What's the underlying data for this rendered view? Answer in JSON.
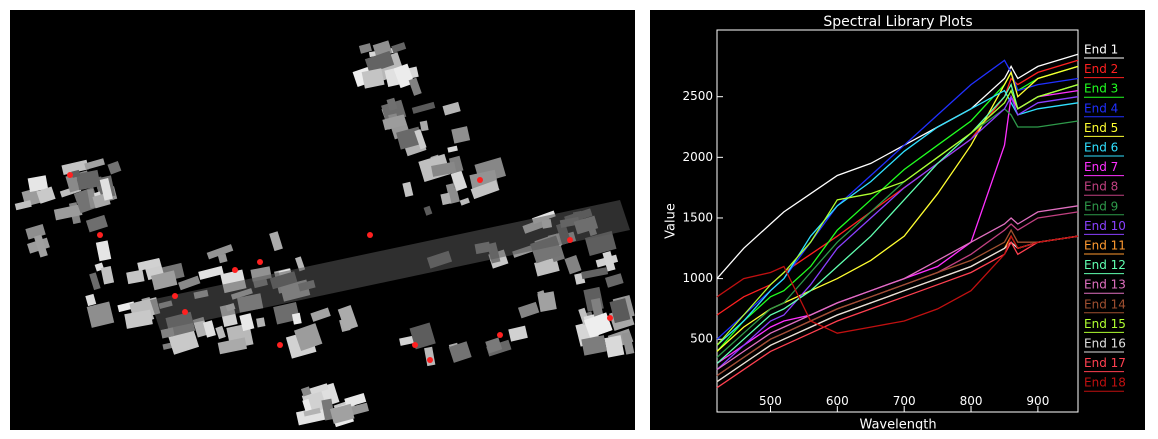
{
  "chart_data": {
    "type": "line",
    "title": "Spectral Library Plots",
    "x_label": "Wavelength",
    "y_label": "Value",
    "x": [
      420,
      460,
      500,
      520,
      560,
      600,
      650,
      700,
      750,
      800,
      850,
      860,
      870,
      900,
      960
    ],
    "xlim": [
      420,
      960
    ],
    "ylim": [
      -100,
      3050
    ],
    "xticks": [
      500,
      600,
      700,
      800,
      900
    ],
    "yticks": [
      500,
      1000,
      1500,
      2000,
      2500
    ],
    "series": [
      {
        "name": "End 1",
        "color": "#ffffff",
        "values": [
          1000,
          1250,
          1450,
          1550,
          1700,
          1850,
          1950,
          2100,
          2250,
          2400,
          2650,
          2750,
          2650,
          2750,
          2850
        ]
      },
      {
        "name": "End 2",
        "color": "#ff2020",
        "values": [
          700,
          850,
          950,
          1050,
          1200,
          1350,
          1550,
          1750,
          1950,
          2150,
          2500,
          2650,
          2600,
          2700,
          2800
        ]
      },
      {
        "name": "End 3",
        "color": "#20ff20",
        "values": [
          400,
          650,
          850,
          900,
          1100,
          1400,
          1650,
          1900,
          2100,
          2300,
          2600,
          2700,
          2550,
          2650,
          2750
        ]
      },
      {
        "name": "End 4",
        "color": "#2030ff",
        "values": [
          500,
          700,
          900,
          1000,
          1300,
          1600,
          1850,
          2100,
          2350,
          2600,
          2800,
          2700,
          2550,
          2600,
          2650
        ]
      },
      {
        "name": "End 5",
        "color": "#ffff30",
        "values": [
          400,
          600,
          750,
          800,
          900,
          1000,
          1150,
          1350,
          1700,
          2100,
          2600,
          2700,
          2500,
          2650,
          2750
        ]
      },
      {
        "name": "End 6",
        "color": "#30e0ff",
        "values": [
          450,
          650,
          900,
          1000,
          1350,
          1600,
          1800,
          2050,
          2250,
          2400,
          2550,
          2450,
          2350,
          2400,
          2450
        ]
      },
      {
        "name": "End 7",
        "color": "#ff30ff",
        "values": [
          300,
          450,
          600,
          650,
          700,
          800,
          900,
          1000,
          1100,
          1300,
          2100,
          2500,
          2400,
          2500,
          2550
        ]
      },
      {
        "name": "End 8",
        "color": "#c04080",
        "values": [
          200,
          350,
          500,
          550,
          650,
          750,
          850,
          950,
          1050,
          1200,
          1400,
          1450,
          1400,
          1500,
          1550
        ]
      },
      {
        "name": "End 9",
        "color": "#2e9a4a",
        "values": [
          350,
          550,
          750,
          800,
          1050,
          1300,
          1550,
          1800,
          2000,
          2200,
          2400,
          2350,
          2250,
          2250,
          2300
        ]
      },
      {
        "name": "End 10",
        "color": "#8a40ff",
        "values": [
          250,
          450,
          650,
          700,
          950,
          1250,
          1500,
          1750,
          1950,
          2150,
          2400,
          2500,
          2350,
          2450,
          2500
        ]
      },
      {
        "name": "End 11",
        "color": "#ff9a30",
        "values": [
          150,
          300,
          450,
          500,
          600,
          700,
          800,
          900,
          1000,
          1100,
          1250,
          1350,
          1250,
          1300,
          1350
        ]
      },
      {
        "name": "End 12",
        "color": "#60ffb0",
        "values": [
          300,
          500,
          700,
          750,
          900,
          1100,
          1350,
          1650,
          1950,
          2200,
          2500,
          2600,
          2400,
          2500,
          2600
        ]
      },
      {
        "name": "End 13",
        "color": "#e070c0",
        "values": [
          250,
          400,
          550,
          600,
          700,
          800,
          900,
          1000,
          1150,
          1300,
          1450,
          1500,
          1450,
          1550,
          1600
        ]
      },
      {
        "name": "End 14",
        "color": "#a05030",
        "values": [
          200,
          350,
          500,
          550,
          650,
          750,
          850,
          950,
          1050,
          1150,
          1300,
          1400,
          1300,
          1300,
          1350
        ]
      },
      {
        "name": "End 15",
        "color": "#b0ff30",
        "values": [
          450,
          700,
          950,
          1050,
          1300,
          1650,
          1700,
          1800,
          2000,
          2200,
          2450,
          2550,
          2400,
          2500,
          2600
        ]
      },
      {
        "name": "End 16",
        "color": "#e0e0e0",
        "values": [
          150,
          300,
          450,
          500,
          600,
          700,
          800,
          900,
          1000,
          1100,
          1250,
          1300,
          1250,
          1300,
          1350
        ]
      },
      {
        "name": "End 17",
        "color": "#ff4050",
        "values": [
          100,
          250,
          400,
          450,
          550,
          650,
          750,
          850,
          950,
          1050,
          1200,
          1300,
          1200,
          1300,
          1350
        ]
      },
      {
        "name": "End 18",
        "color": "#c01010",
        "values": [
          850,
          1000,
          1050,
          1100,
          650,
          550,
          600,
          650,
          750,
          900,
          1200,
          1350,
          1250,
          1300,
          1350
        ]
      }
    ]
  }
}
